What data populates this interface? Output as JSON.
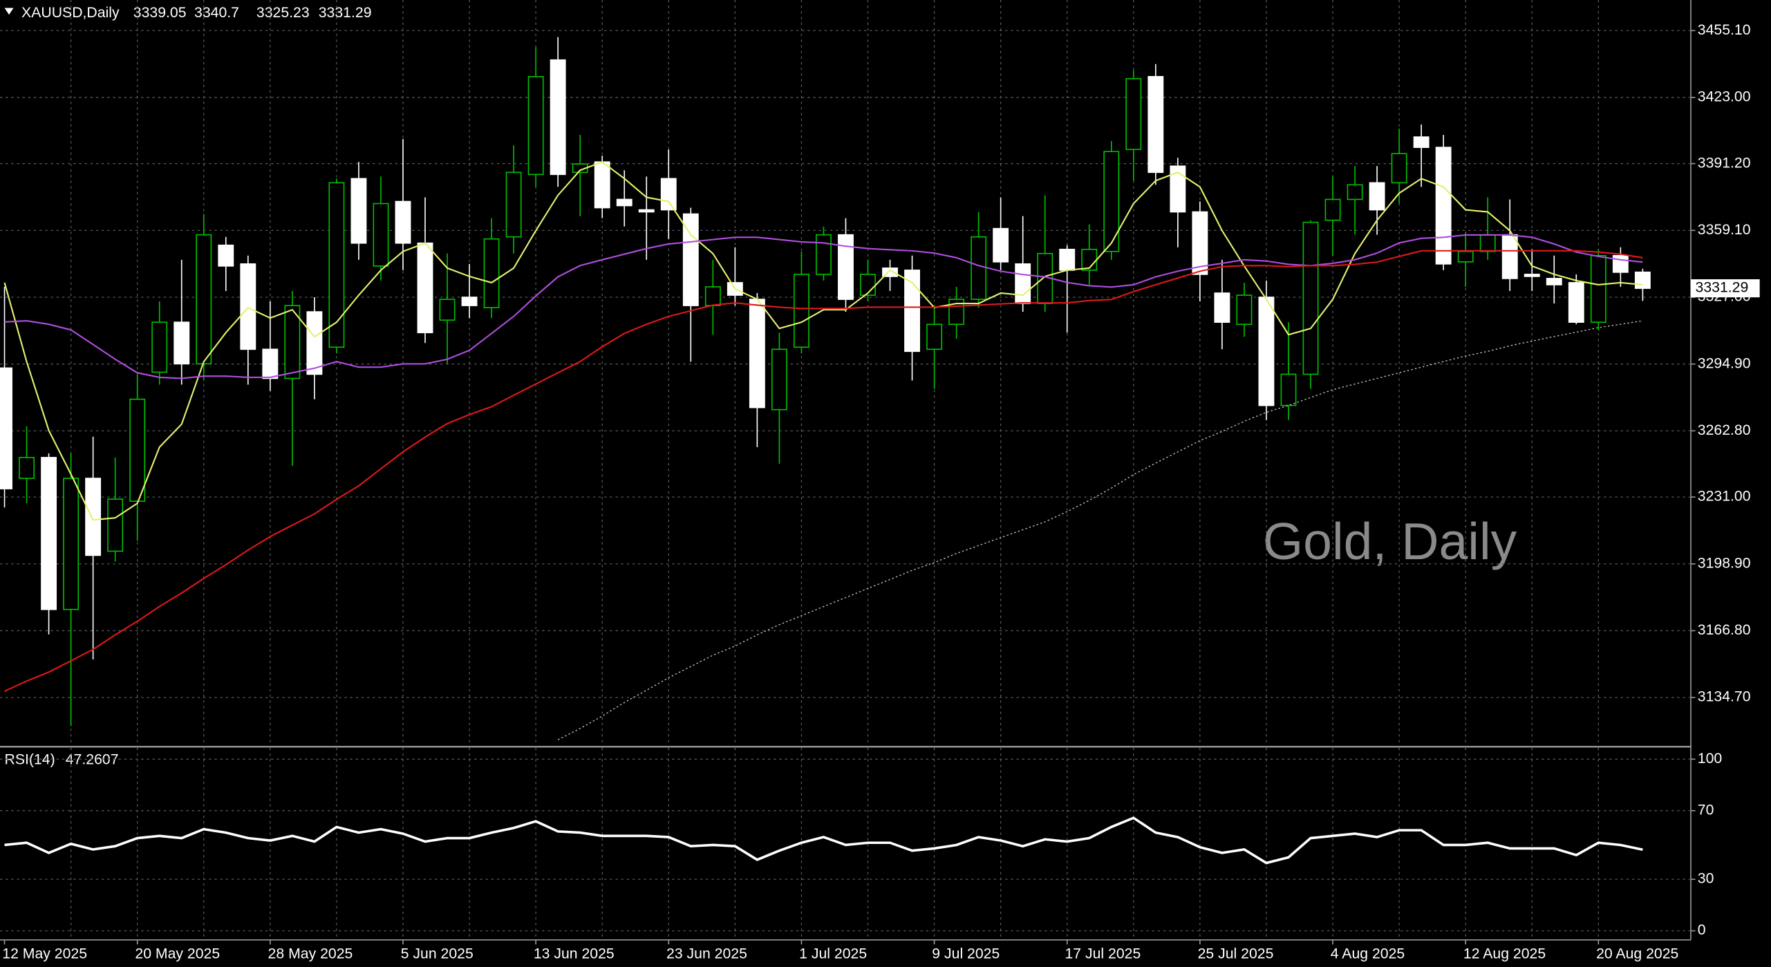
{
  "chart_data": [
    {
      "type": "candlestick",
      "title": "XAUUSD,Daily",
      "annotation": "Gold, Daily",
      "categories": [
        "12 May 2025",
        null,
        null,
        null,
        null,
        null,
        "20 May 2025",
        null,
        null,
        null,
        null,
        null,
        "28 May 2025",
        null,
        null,
        null,
        null,
        null,
        "5 Jun 2025",
        null,
        null,
        null,
        null,
        null,
        "13 Jun 2025",
        null,
        null,
        null,
        null,
        null,
        "23 Jun 2025",
        null,
        null,
        null,
        null,
        null,
        "1 Jul 2025",
        null,
        null,
        null,
        null,
        null,
        "9 Jul 2025",
        null,
        null,
        null,
        null,
        null,
        "17 Jul 2025",
        null,
        null,
        null,
        null,
        null,
        "25 Jul 2025",
        null,
        null,
        null,
        null,
        null,
        "4 Aug 2025",
        null,
        null,
        null,
        null,
        null,
        "12 Aug 2025",
        null,
        null,
        null,
        null,
        null,
        "20 Aug 2025",
        null,
        null
      ],
      "open": [
        3293,
        3240,
        3250,
        3177,
        3240,
        3205,
        3229,
        3291,
        3315,
        3295,
        3352,
        3343,
        3302,
        3288,
        3320,
        3303,
        3384,
        3342,
        3373,
        3353,
        3316,
        3327,
        3322,
        3356,
        3386,
        3441,
        3387,
        3392,
        3374,
        3369,
        3384,
        3367,
        3323,
        3334,
        3326,
        3273,
        3303,
        3338,
        3357,
        3328,
        3341,
        3340,
        3302,
        3314,
        3326,
        3360,
        3343,
        3324,
        3350,
        3340,
        3349,
        3398,
        3433,
        3390,
        3368,
        3329,
        3314,
        3327,
        3275,
        3290,
        3364,
        3374,
        3382,
        3382,
        3404,
        3399,
        3344,
        3349,
        3357,
        3338,
        3336,
        3334,
        3315,
        3347,
        3339.05
      ],
      "high": [
        3332,
        3265,
        3252,
        3252,
        3260,
        3250,
        3290,
        3325,
        3345,
        3367,
        3356,
        3347,
        3325,
        3330,
        3327,
        3384,
        3392,
        3385,
        3403,
        3375,
        3348,
        3343,
        3365,
        3400,
        3447,
        3452,
        3405,
        3395,
        3388,
        3385,
        3398,
        3370,
        3345,
        3351,
        3329,
        3310,
        3349,
        3361,
        3365,
        3345,
        3345,
        3347,
        3323,
        3332,
        3368,
        3375,
        3366,
        3376,
        3352,
        3362,
        3402,
        3436,
        3439,
        3394,
        3373,
        3345,
        3334,
        3335,
        3315,
        3364,
        3385,
        3390,
        3390,
        3408,
        3410,
        3405,
        3358,
        3375,
        3374,
        3350,
        3347,
        3338,
        3350,
        3351,
        3340.7
      ],
      "low": [
        3226,
        3228,
        3165,
        3121,
        3153,
        3200,
        3210,
        3285,
        3285,
        3287,
        3330,
        3285,
        3282,
        3246,
        3278,
        3300,
        3345,
        3335,
        3340,
        3305,
        3295,
        3317,
        3317,
        3348,
        3380,
        3380,
        3366,
        3365,
        3361,
        3345,
        3355,
        3296,
        3309,
        3323,
        3255,
        3247,
        3300,
        3335,
        3320,
        3325,
        3330,
        3287,
        3283,
        3307,
        3322,
        3340,
        3320,
        3320,
        3310,
        3333,
        3345,
        3383,
        3381,
        3351,
        3325,
        3302,
        3308,
        3268,
        3268,
        3283,
        3347,
        3357,
        3357,
        3372,
        3380,
        3340,
        3332,
        3345,
        3330,
        3330,
        3324,
        3314,
        3311,
        3332,
        3325.23
      ],
      "close": [
        3235,
        3250,
        3177,
        3240,
        3203,
        3230,
        3278,
        3315,
        3295,
        3357,
        3342,
        3302,
        3288,
        3323,
        3290,
        3382,
        3353,
        3372,
        3353,
        3310,
        3326,
        3323,
        3355,
        3387,
        3433,
        3386,
        3391,
        3370,
        3371,
        3368,
        3369,
        3323,
        3332,
        3328,
        3274,
        3302,
        3338,
        3357,
        3326,
        3338,
        3337,
        3301,
        3314,
        3326,
        3356,
        3344,
        3324,
        3348,
        3340,
        3350,
        3397,
        3432,
        3387,
        3368,
        3338,
        3315,
        3328,
        3275,
        3290,
        3363,
        3374,
        3381,
        3369,
        3396,
        3399,
        3343,
        3349,
        3357,
        3336,
        3337,
        3333,
        3315,
        3347,
        3339,
        3331.29
      ],
      "bull_color": "#00c000",
      "bear_color": "#ffffff",
      "series": [
        {
          "color": "#e6f06e",
          "values": [
            3334,
            3296,
            3263,
            3242,
            3220,
            3221,
            3228,
            3255,
            3266,
            3296,
            3310,
            3322,
            3317,
            3321,
            3308,
            3315,
            3328,
            3340,
            3349,
            3353,
            3341,
            3337,
            3334,
            3341,
            3359,
            3376,
            3388,
            3392,
            3384,
            3375,
            3373,
            3357,
            3348,
            3331,
            3326,
            3312,
            3315,
            3321,
            3321,
            3329,
            3340,
            3334,
            3322,
            3324,
            3324,
            3329,
            3328,
            3337,
            3340,
            3341,
            3353,
            3372,
            3383,
            3387,
            3380,
            3359,
            3342,
            3326,
            3309,
            3312,
            3326,
            3348,
            3364,
            3377,
            3384,
            3380,
            3369,
            3368,
            3359,
            3342,
            3338,
            3335,
            3333,
            3334,
            3333
          ]
        },
        {
          "color": "#b04ee0",
          "values": [
            3315.1,
            3315.7,
            3314.0,
            3311.3,
            3304.3,
            3297.2,
            3290.7,
            3288.5,
            3288.0,
            3289.1,
            3289.1,
            3288.5,
            3288.5,
            3290.7,
            3292.9,
            3296.1,
            3293.4,
            3293.4,
            3295.0,
            3295.0,
            3297.2,
            3301.5,
            3309.6,
            3317.8,
            3327.6,
            3336.8,
            3342.2,
            3345.0,
            3347.7,
            3350.4,
            3352.6,
            3353.6,
            3354.7,
            3355.8,
            3355.8,
            3354.7,
            3353.6,
            3353.1,
            3351.5,
            3350.4,
            3349.8,
            3349.3,
            3348.2,
            3346.0,
            3342.2,
            3339.5,
            3337.9,
            3336.8,
            3334.1,
            3332.5,
            3331.9,
            3333.0,
            3336.8,
            3339.5,
            3341.7,
            3343.3,
            3345.0,
            3344.4,
            3342.8,
            3342.2,
            3343.3,
            3345.0,
            3348.2,
            3353.1,
            3355.3,
            3355.8,
            3356.9,
            3356.9,
            3356.9,
            3355.8,
            3352.6,
            3348.7,
            3346.6,
            3345.0,
            3343.9
          ]
        },
        {
          "color": "#e01818",
          "values": [
            3137.7,
            3142.6,
            3146.9,
            3152.3,
            3157.8,
            3164.8,
            3171.3,
            3178.4,
            3184.9,
            3191.9,
            3198.5,
            3205.5,
            3212.0,
            3217.5,
            3222.9,
            3229.9,
            3236.4,
            3244.6,
            3252.7,
            3259.8,
            3266.3,
            3270.6,
            3274.4,
            3279.9,
            3285.3,
            3290.7,
            3296.1,
            3303.2,
            3309.6,
            3314.0,
            3317.8,
            3320.5,
            3323.2,
            3324.3,
            3323.2,
            3322.2,
            3321.6,
            3321.6,
            3321.6,
            3322.2,
            3322.2,
            3322.2,
            3322.2,
            3322.7,
            3323.2,
            3323.8,
            3324.3,
            3324.3,
            3324.3,
            3325.4,
            3325.9,
            3329.7,
            3333.0,
            3336.2,
            3339.5,
            3341.7,
            3342.2,
            3342.2,
            3341.7,
            3342.2,
            3342.2,
            3342.8,
            3343.9,
            3346.6,
            3349.3,
            3349.3,
            3349.3,
            3349.3,
            3349.3,
            3349.3,
            3349.3,
            3349.3,
            3348.7,
            3347.7,
            3346.0
          ]
        },
        {
          "color": "#c8c8c8",
          "dotted": true,
          "values": [
            null,
            null,
            null,
            null,
            null,
            null,
            null,
            null,
            null,
            null,
            null,
            null,
            null,
            null,
            null,
            null,
            null,
            null,
            null,
            null,
            null,
            null,
            null,
            null,
            null,
            3114.4,
            3119.8,
            3125.8,
            3132.3,
            3138.2,
            3144.2,
            3149.6,
            3155.0,
            3159.4,
            3164.8,
            3169.7,
            3174.0,
            3178.4,
            3182.7,
            3187.1,
            3191.4,
            3195.8,
            3199.5,
            3203.9,
            3207.7,
            3211.5,
            3215.3,
            3219.1,
            3224.0,
            3229.4,
            3235.3,
            3241.8,
            3247.3,
            3252.7,
            3258.1,
            3262.5,
            3267.4,
            3271.7,
            3275.0,
            3278.8,
            3282.6,
            3285.3,
            3288.0,
            3290.7,
            3293.4,
            3296.1,
            3298.8,
            3301.0,
            3303.7,
            3305.9,
            3308.1,
            3310.2,
            3312.4,
            3314.0,
            3315.7
          ]
        }
      ],
      "ylim": [
        3111.6,
        3469.8
      ],
      "yticks": [
        {
          "value": 3455.1,
          "label": "3455.10"
        },
        {
          "value": 3423,
          "label": "3423.00"
        },
        {
          "value": 3391.2,
          "label": "3391.20"
        },
        {
          "value": 3359.1,
          "label": "3359.10"
        },
        {
          "value": 3327,
          "label": "3327.00"
        },
        {
          "value": 3294.9,
          "label": "3294.90"
        },
        {
          "value": 3262.8,
          "label": "3262.80"
        },
        {
          "value": 3231,
          "label": "3231.00"
        },
        {
          "value": 3198.9,
          "label": "3198.90"
        },
        {
          "value": 3166.8,
          "label": "3166.80"
        },
        {
          "value": 3134.7,
          "label": "3134.70"
        }
      ],
      "grid": true
    },
    {
      "type": "line",
      "title": "RSI(14)",
      "series": [
        {
          "color": "#ffffff",
          "values": [
            50,
            51.3,
            45.4,
            50.7,
            47.4,
            49.3,
            54,
            55.3,
            54,
            59.2,
            57.2,
            54,
            52.6,
            55.3,
            52,
            60.5,
            57.2,
            59.2,
            56.6,
            52,
            54,
            54,
            57.2,
            59.9,
            63.8,
            57.9,
            57.2,
            55.3,
            55.3,
            55.3,
            54.6,
            49.3,
            50,
            49.3,
            41.4,
            46.7,
            51.3,
            54.6,
            50,
            51.3,
            51.3,
            46.7,
            48,
            50,
            54.6,
            52.6,
            49.3,
            53.3,
            52,
            54,
            60.5,
            65.8,
            57.2,
            54.6,
            48.7,
            45.4,
            47.4,
            39.5,
            42.8,
            54,
            55.3,
            56.6,
            54.6,
            58.6,
            58.6,
            50,
            50,
            51.3,
            48,
            48,
            48,
            44.1,
            51.3,
            50,
            47.2607
          ]
        }
      ],
      "ylim": [
        -5.3,
        106.6
      ],
      "yticks": [
        100,
        70,
        30,
        0
      ],
      "grid": true
    }
  ]
}
